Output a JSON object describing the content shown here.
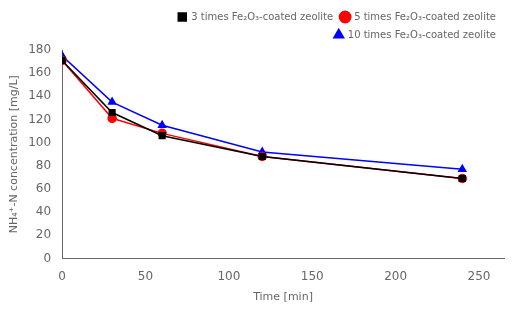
{
  "chart_data": {
    "type": "line",
    "x": [
      0,
      30,
      60,
      120,
      240
    ],
    "series": [
      {
        "name": "3 times Fe₂O₃-coated zeolite",
        "color": "black",
        "marker": "square",
        "line_style": "solid",
        "values": [
          171,
          126,
          106,
          88,
          69
        ]
      },
      {
        "name": "5 times Fe₂O₃-coated zeolite",
        "color": "red",
        "marker": "circle",
        "line_style": "solid",
        "values": [
          171,
          121,
          108,
          88,
          69
        ]
      },
      {
        "name": "10 times Fe₂O₃-coated zeolite",
        "color": "blue",
        "marker": "triangle",
        "line_style": "solid",
        "values": [
          175,
          135,
          115,
          92,
          77
        ]
      }
    ],
    "xlabel": "Time [min]",
    "ylabel": "NH₄⁺-N concentration [mg/L]",
    "xlim": [
      0,
      265
    ],
    "ylim": [
      0,
      180
    ],
    "xticks": [
      0,
      50,
      100,
      150,
      200,
      250
    ],
    "yticks": [
      0,
      20,
      40,
      60,
      80,
      100,
      120,
      140,
      160,
      180
    ],
    "grid": false,
    "legend": "upper right"
  }
}
